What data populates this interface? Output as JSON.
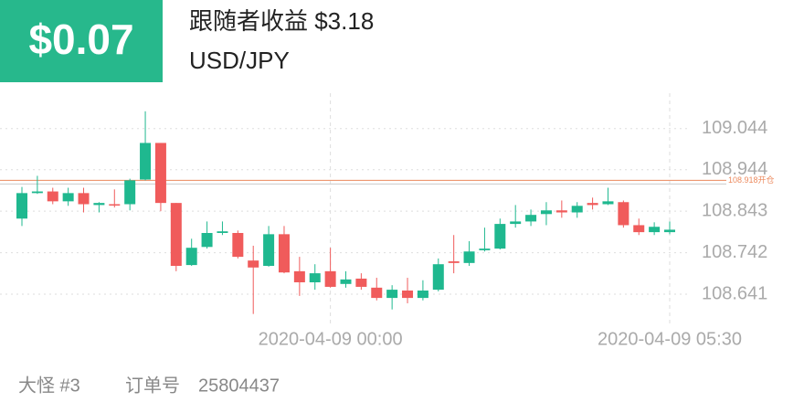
{
  "header": {
    "badge": "$0.07",
    "title": "跟随者收益 $3.18",
    "symbol": "USD/JPY"
  },
  "footer": {
    "user": "大怪 #3",
    "order_label": "订单号",
    "order": "25804437"
  },
  "chart_data": {
    "type": "candlestick",
    "categories": [
      null,
      null,
      null,
      null,
      null,
      null,
      null,
      null,
      null,
      null,
      null,
      null,
      null,
      null,
      null,
      null,
      null,
      null,
      null,
      null,
      "2020-04-09 00:00",
      null,
      null,
      null,
      null,
      null,
      null,
      null,
      null,
      null,
      null,
      null,
      null,
      null,
      null,
      null,
      null,
      null,
      null,
      null,
      null,
      null,
      "2020-04-09 05:30"
    ],
    "open": [
      108.825,
      108.887,
      108.891,
      108.867,
      108.887,
      108.858,
      108.86,
      108.86,
      108.92,
      109.009,
      108.863,
      108.712,
      108.756,
      108.79,
      108.79,
      108.723,
      108.71,
      108.787,
      108.697,
      108.67,
      108.697,
      108.666,
      108.679,
      108.657,
      108.632,
      108.65,
      108.632,
      108.652,
      108.721,
      108.717,
      108.748,
      108.752,
      108.812,
      108.818,
      108.836,
      108.845,
      108.84,
      108.863,
      108.86,
      108.865,
      108.809,
      108.792,
      108.792
    ],
    "high": [
      108.902,
      108.929,
      108.9,
      108.9,
      108.9,
      108.865,
      108.896,
      108.922,
      109.086,
      109.009,
      108.863,
      108.776,
      108.818,
      108.818,
      108.796,
      108.759,
      108.807,
      108.807,
      108.732,
      108.714,
      108.754,
      108.697,
      108.692,
      108.681,
      108.663,
      108.681,
      108.675,
      108.728,
      108.785,
      108.77,
      108.803,
      108.825,
      108.858,
      108.847,
      108.865,
      108.869,
      108.865,
      108.876,
      108.9,
      108.869,
      108.825,
      108.816,
      108.818
    ],
    "low": [
      108.807,
      108.885,
      108.86,
      108.856,
      108.84,
      108.84,
      108.852,
      108.845,
      108.918,
      108.843,
      108.697,
      108.71,
      108.752,
      108.785,
      108.728,
      108.593,
      108.708,
      108.692,
      108.637,
      108.652,
      108.657,
      108.657,
      108.652,
      108.626,
      108.604,
      108.619,
      108.626,
      108.648,
      108.692,
      108.71,
      108.745,
      108.75,
      108.803,
      108.807,
      108.809,
      108.827,
      108.827,
      108.847,
      108.858,
      108.803,
      108.785,
      108.785,
      108.787
    ],
    "close": [
      108.887,
      108.891,
      108.867,
      108.887,
      108.86,
      108.863,
      108.858,
      108.918,
      109.009,
      108.863,
      108.71,
      108.754,
      108.79,
      108.794,
      108.732,
      108.706,
      108.787,
      108.694,
      108.67,
      108.692,
      108.659,
      108.677,
      108.659,
      108.632,
      108.652,
      108.632,
      108.65,
      108.714,
      108.717,
      108.745,
      108.752,
      108.812,
      108.818,
      108.834,
      108.845,
      108.84,
      108.856,
      108.858,
      108.867,
      108.809,
      108.792,
      108.805,
      108.798
    ],
    "up_color": "#1fb88f",
    "down_color": "#f05b5b",
    "ylim": [
      108.59,
      109.13
    ],
    "yticks": [
      108.641,
      108.742,
      108.843,
      108.944,
      109.044
    ],
    "grid": true,
    "ref_line": {
      "value": 108.918,
      "label": "108.918开仓",
      "color": "#ec8a5e"
    }
  }
}
